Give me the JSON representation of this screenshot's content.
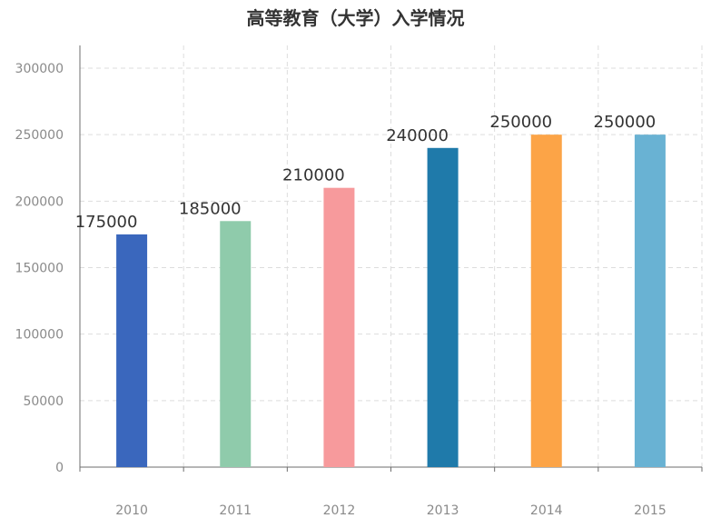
{
  "chart_data": {
    "type": "bar",
    "title": "高等教育（大学）入学情况",
    "categories": [
      "2010",
      "2011",
      "2012",
      "2013",
      "2014",
      "2015"
    ],
    "values": [
      175000,
      185000,
      210000,
      240000,
      250000,
      250000
    ],
    "data_labels": [
      "175000",
      "185000",
      "210000",
      "240000",
      "250000",
      "250000"
    ],
    "bar_colors": [
      "#3a67bd",
      "#8fcbab",
      "#f79a9c",
      "#1f7aaa",
      "#fca447",
      "#69b2d3"
    ],
    "ylim": [
      0,
      300000
    ],
    "y_ticks": [
      0,
      50000,
      100000,
      150000,
      200000,
      250000,
      300000
    ],
    "y_tick_labels": [
      "0",
      "50000",
      "100000",
      "150000",
      "200000",
      "250000",
      "300000"
    ],
    "xlabel": "",
    "ylabel": "",
    "grid": true,
    "grid_style": "dashed"
  }
}
